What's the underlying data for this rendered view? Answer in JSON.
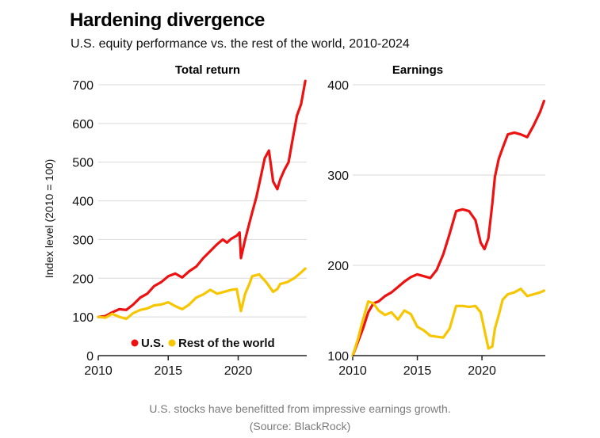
{
  "header": {
    "title": "Hardening divergence",
    "subtitle": "U.S. equity performance vs. the rest of the world, 2010-2024"
  },
  "caption": {
    "line1": "U.S. stocks have benefitted from impressive earnings growth.",
    "line2": "(Source: BlackRock)"
  },
  "colors": {
    "us": "#ee1111",
    "row": "#f7c600",
    "grid": "#d9d9d9",
    "axis": "#222222"
  },
  "chart_data": [
    {
      "type": "line",
      "title": "Total return",
      "ylabel": "Index level (2010 = 100)",
      "xlabel": "",
      "xlim": [
        2010,
        2024.9
      ],
      "ylim": [
        0,
        700
      ],
      "xticks": [
        2010,
        2015,
        2020
      ],
      "yticks": [
        0,
        100,
        200,
        300,
        400,
        500,
        600,
        700
      ],
      "grid": true,
      "legend": "bottom-right",
      "series": [
        {
          "name": "U.S.",
          "color": "#ee1111",
          "x": [
            2010,
            2010.5,
            2011,
            2011.5,
            2012,
            2012.5,
            2013,
            2013.5,
            2014,
            2014.5,
            2015,
            2015.5,
            2016,
            2016.5,
            2017,
            2017.5,
            2018,
            2018.5,
            2018.9,
            2019.2,
            2019.5,
            2019.9,
            2020.1,
            2020.2,
            2020.5,
            2020.8,
            2021,
            2021.3,
            2021.6,
            2021.9,
            2022.2,
            2022.5,
            2022.8,
            2023,
            2023.3,
            2023.6,
            2023.9,
            2024.2,
            2024.5,
            2024.8
          ],
          "y": [
            100,
            102,
            112,
            120,
            118,
            132,
            150,
            160,
            180,
            190,
            205,
            212,
            202,
            218,
            230,
            252,
            270,
            288,
            300,
            292,
            302,
            310,
            318,
            252,
            300,
            342,
            370,
            410,
            460,
            510,
            530,
            450,
            430,
            455,
            480,
            500,
            560,
            620,
            650,
            710
          ]
        },
        {
          "name": "Rest of the world",
          "color": "#f7c600",
          "x": [
            2010,
            2010.5,
            2011,
            2011.5,
            2012,
            2012.5,
            2013,
            2013.5,
            2014,
            2014.5,
            2015,
            2015.5,
            2016,
            2016.5,
            2017,
            2017.5,
            2018,
            2018.5,
            2019,
            2019.5,
            2019.9,
            2020.2,
            2020.5,
            2020.8,
            2021,
            2021.5,
            2022,
            2022.5,
            2022.8,
            2023,
            2023.5,
            2024,
            2024.5,
            2024.8
          ],
          "y": [
            100,
            98,
            108,
            100,
            95,
            110,
            118,
            122,
            130,
            132,
            138,
            128,
            120,
            132,
            150,
            158,
            170,
            160,
            165,
            170,
            172,
            115,
            160,
            185,
            205,
            210,
            190,
            165,
            172,
            185,
            190,
            200,
            215,
            225
          ]
        }
      ]
    },
    {
      "type": "line",
      "title": "Earnings",
      "xlabel": "",
      "xlim": [
        2010,
        2024.9
      ],
      "ylim": [
        100,
        400
      ],
      "xticks": [
        2010,
        2015,
        2020
      ],
      "yticks": [
        100,
        200,
        300,
        400
      ],
      "grid": true,
      "series": [
        {
          "name": "U.S.",
          "color": "#ee1111",
          "x": [
            2010,
            2010.4,
            2010.8,
            2011.2,
            2011.6,
            2012,
            2012.5,
            2013,
            2013.5,
            2014,
            2014.5,
            2015,
            2015.5,
            2016,
            2016.5,
            2017,
            2017.5,
            2018,
            2018.5,
            2019,
            2019.5,
            2019.9,
            2020.2,
            2020.5,
            2020.8,
            2021,
            2021.3,
            2021.6,
            2022,
            2022.5,
            2023,
            2023.5,
            2024,
            2024.5,
            2024.8
          ],
          "y": [
            100,
            115,
            130,
            148,
            158,
            160,
            166,
            170,
            176,
            182,
            187,
            190,
            188,
            186,
            195,
            212,
            235,
            260,
            262,
            260,
            250,
            225,
            218,
            230,
            268,
            298,
            318,
            330,
            345,
            347,
            345,
            342,
            355,
            370,
            382
          ]
        },
        {
          "name": "Rest of the world",
          "color": "#f7c600",
          "x": [
            2010,
            2010.4,
            2010.8,
            2011.2,
            2011.6,
            2012,
            2012.5,
            2013,
            2013.5,
            2014,
            2014.5,
            2015,
            2015.5,
            2016,
            2016.5,
            2017,
            2017.5,
            2018,
            2018.5,
            2019,
            2019.5,
            2019.9,
            2020.2,
            2020.5,
            2020.8,
            2021,
            2021.3,
            2021.6,
            2022,
            2022.5,
            2023,
            2023.5,
            2024,
            2024.5,
            2024.8
          ],
          "y": [
            100,
            118,
            140,
            160,
            158,
            150,
            145,
            148,
            140,
            150,
            146,
            132,
            128,
            122,
            121,
            120,
            130,
            155,
            155,
            154,
            155,
            148,
            128,
            108,
            110,
            130,
            145,
            162,
            168,
            170,
            174,
            166,
            168,
            170,
            172
          ]
        }
      ]
    }
  ]
}
